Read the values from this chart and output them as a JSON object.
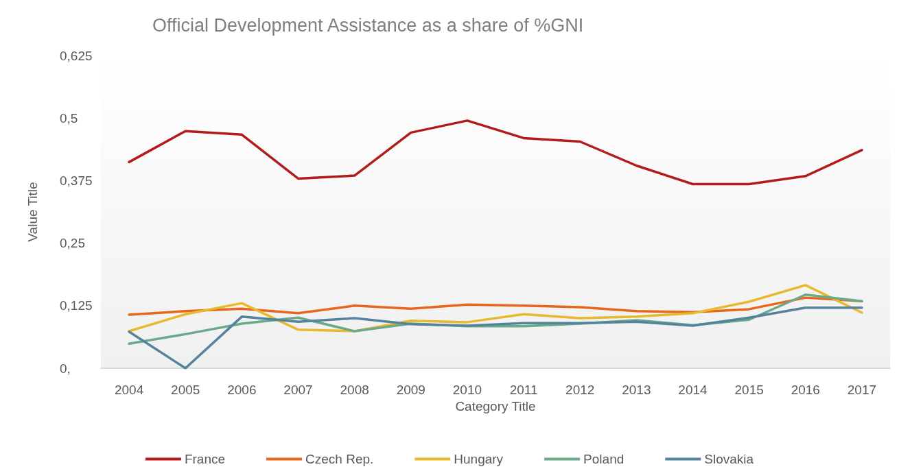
{
  "chart_data": {
    "type": "line",
    "title": "Official Development Assistance as a share of %GNI",
    "xlabel": "Category Title",
    "ylabel": "Value Title",
    "categories": [
      "2004",
      "2005",
      "2006",
      "2007",
      "2008",
      "2009",
      "2010",
      "2011",
      "2012",
      "2013",
      "2014",
      "2015",
      "2016",
      "2017"
    ],
    "series": [
      {
        "name": "France",
        "color": "#b31b1b",
        "values": [
          0.412,
          0.474,
          0.467,
          0.379,
          0.385,
          0.471,
          0.495,
          0.46,
          0.453,
          0.405,
          0.368,
          0.368,
          0.384,
          0.436
        ]
      },
      {
        "name": "Czech Rep.",
        "color": "#e8661b",
        "values": [
          0.107,
          0.114,
          0.119,
          0.11,
          0.125,
          0.119,
          0.127,
          0.125,
          0.122,
          0.114,
          0.112,
          0.118,
          0.141,
          0.134
        ]
      },
      {
        "name": "Hungary",
        "color": "#e8b92d",
        "values": [
          0.074,
          0.108,
          0.13,
          0.077,
          0.074,
          0.095,
          0.092,
          0.108,
          0.1,
          0.103,
          0.11,
          0.133,
          0.166,
          0.111
        ]
      },
      {
        "name": "Poland",
        "color": "#6aa98a",
        "values": [
          0.049,
          0.068,
          0.089,
          0.101,
          0.074,
          0.089,
          0.084,
          0.084,
          0.089,
          0.096,
          0.086,
          0.097,
          0.147,
          0.134
        ]
      },
      {
        "name": "Slovakia",
        "color": "#54849c",
        "values": [
          0.073,
          0,
          0.103,
          0.093,
          0.1,
          0.088,
          0.085,
          0.09,
          0.09,
          0.093,
          0.085,
          0.101,
          0.121,
          0.121
        ]
      }
    ],
    "ylim": [
      0,
      0.625
    ],
    "yticks": [
      {
        "value": 0,
        "label": "0,"
      },
      {
        "value": 0.125,
        "label": "0,125"
      },
      {
        "value": 0.25,
        "label": "0,25"
      },
      {
        "value": 0.375,
        "label": "0,375"
      },
      {
        "value": 0.5,
        "label": "0,5"
      },
      {
        "value": 0.625,
        "label": "0,625"
      }
    ],
    "grid": false,
    "legend": "bottom",
    "marker": "none",
    "line_style": "solid"
  }
}
